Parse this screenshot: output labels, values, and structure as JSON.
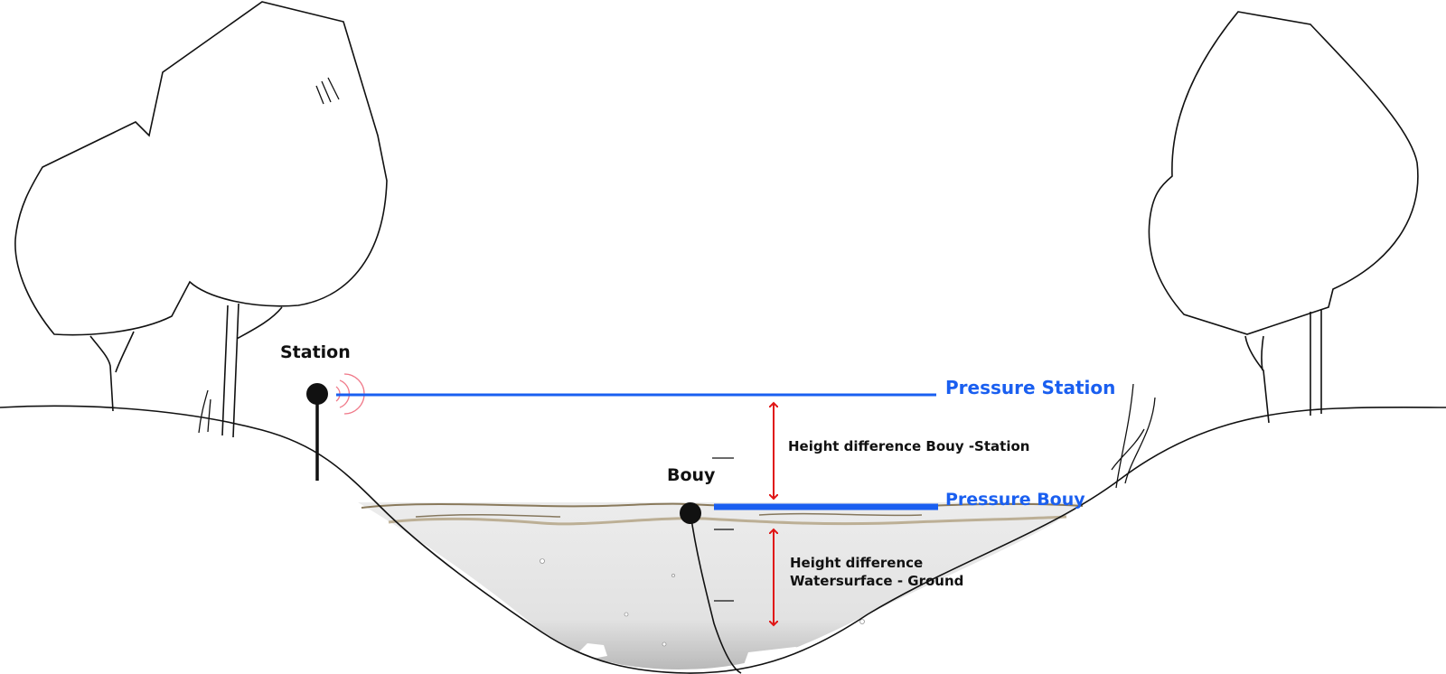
{
  "labels": {
    "station": "Station",
    "bouy": "Bouy",
    "pressure_station": "Pressure Station",
    "pressure_bouy": "Pressure Bouy",
    "height_bouy_station": "Height difference Bouy -Station",
    "height_water_ground_line1": "Height difference",
    "height_water_ground_line2": "Watersurface - Ground"
  },
  "colors": {
    "pressure_line": "#1a5ff0",
    "arrow": "#e01515",
    "signal": "#f07a8a",
    "outline": "#111111",
    "water": "#e6e6e6"
  },
  "icons": {
    "station_signal": "signal-waves-icon",
    "arrow": "double-headed-arrow-icon"
  }
}
